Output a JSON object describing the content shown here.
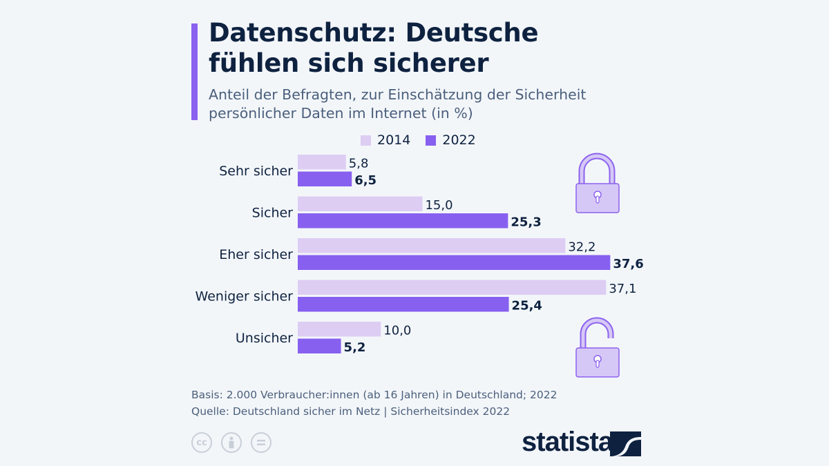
{
  "header": {
    "title_line1": "Datenschutz: Deutsche",
    "title_line2": "fühlen sich sicherer",
    "subtitle_line1": "Anteil der Befragten, zur Einschätzung der Sicherheit",
    "subtitle_line2": "persönlicher Daten im Internet (in %)"
  },
  "colors": {
    "accent": "#8b61ef",
    "series_2014": "#ddcdf3",
    "series_2022": "#8760f0",
    "text": "#0e2240"
  },
  "chart_data": {
    "type": "bar",
    "orientation": "horizontal",
    "title": "Datenschutz: Deutsche fühlen sich sicherer",
    "subtitle": "Anteil der Befragten, zur Einschätzung der Sicherheit persönlicher Daten im Internet (in %)",
    "categories": [
      "Sehr sicher",
      "Sicher",
      "Eher sicher",
      "Weniger sicher",
      "Unsicher"
    ],
    "series": [
      {
        "name": "2014",
        "values": [
          5.8,
          15.0,
          32.2,
          37.1,
          10.0
        ],
        "labels": [
          "5,8",
          "15,0",
          "32,2",
          "37,1",
          "10,0"
        ]
      },
      {
        "name": "2022",
        "values": [
          6.5,
          25.3,
          37.6,
          25.4,
          5.2
        ],
        "labels": [
          "6,5",
          "25,3",
          "37,6",
          "25,4",
          "5,2"
        ]
      }
    ],
    "xlabel": "",
    "ylabel": "",
    "xlim": [
      0,
      40
    ],
    "grid": false,
    "legend_position": "top"
  },
  "icons": {
    "top": "closed-padlock-icon",
    "bottom": "open-padlock-icon"
  },
  "footer": {
    "basis": "Basis: 2.000 Verbraucher:innen (ab 16 Jahren) in Deutschland; 2022",
    "source": "Quelle: Deutschland sicher im Netz | Sicherheitsindex 2022",
    "cc_label": "cc",
    "brand": "statista"
  }
}
